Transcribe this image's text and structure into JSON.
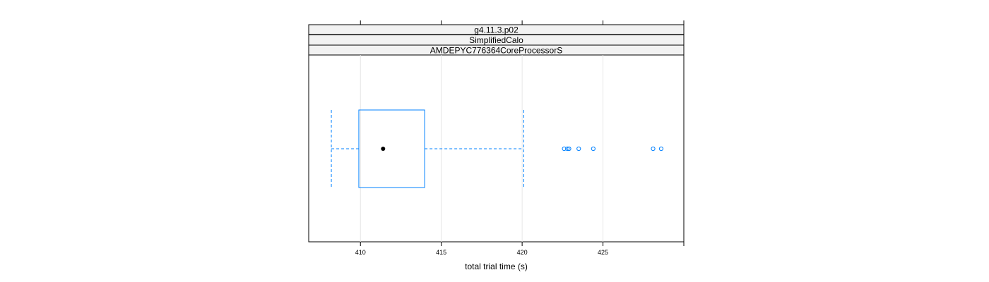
{
  "chart_data": {
    "type": "boxplot",
    "orientation": "horizontal",
    "strips": [
      "g4.11.3.p02",
      "SimplifiedCalo",
      "AMDEPYC776364CoreProcessorS"
    ],
    "xlabel": "total trial time (s)",
    "xlim": [
      406.8,
      430
    ],
    "xticks": [
      410,
      415,
      420,
      425
    ],
    "grid": true,
    "box": {
      "whisker_low": 408.2,
      "q1": 409.9,
      "median": 411.4,
      "q3": 413.97,
      "whisker_high": 420.1
    },
    "outliers": [
      422.6,
      422.8,
      422.9,
      423.5,
      424.4,
      428.1,
      428.6
    ],
    "colors": {
      "box": "#0080ff",
      "median_dot": "#000000",
      "grid": "#e6e6e6",
      "strip_bg": "#f2f2f2",
      "frame": "#000000"
    }
  }
}
